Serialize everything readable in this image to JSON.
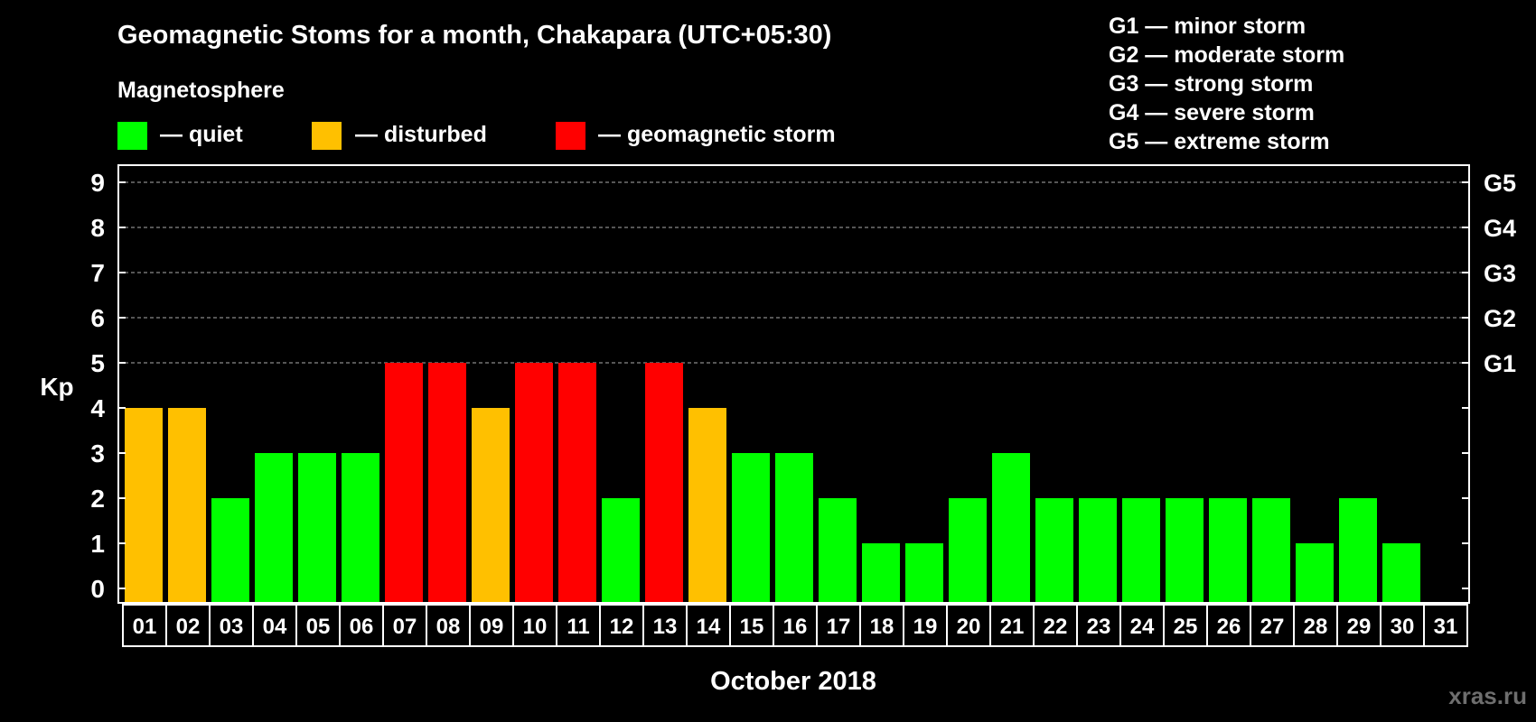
{
  "chart_data": {
    "type": "bar",
    "title": "Geomagnetic Stoms for a month, Chakapara (UTC+05:30)",
    "legend_title": "Magnetosphere",
    "legend": [
      {
        "label": "— quiet",
        "color": "#00ff00"
      },
      {
        "label": "— disturbed",
        "color": "#ffc000"
      },
      {
        "label": "— geomagnetic storm",
        "color": "#ff0000"
      }
    ],
    "storm_scale": [
      "G1 — minor storm",
      "G2 — moderate storm",
      "G3 — strong storm",
      "G4 — severe storm",
      "G5 — extreme storm"
    ],
    "ylabel": "Kp",
    "xlabel": "October 2018",
    "ylim": [
      0,
      9
    ],
    "y_ticks": [
      "0",
      "1",
      "2",
      "3",
      "4",
      "5",
      "6",
      "7",
      "8",
      "9"
    ],
    "right_ticks": [
      {
        "kp": 5,
        "label": "G1"
      },
      {
        "kp": 6,
        "label": "G2"
      },
      {
        "kp": 7,
        "label": "G3"
      },
      {
        "kp": 8,
        "label": "G4"
      },
      {
        "kp": 9,
        "label": "G5"
      }
    ],
    "grid": "dashed horizontal at Kp 5-9",
    "categories": [
      "01",
      "02",
      "03",
      "04",
      "05",
      "06",
      "07",
      "08",
      "09",
      "10",
      "11",
      "12",
      "13",
      "14",
      "15",
      "16",
      "17",
      "18",
      "19",
      "20",
      "21",
      "22",
      "23",
      "24",
      "25",
      "26",
      "27",
      "28",
      "29",
      "30",
      "31"
    ],
    "values": [
      4,
      4,
      2,
      3,
      3,
      3,
      5,
      5,
      4,
      5,
      5,
      2,
      5,
      4,
      3,
      3,
      2,
      1,
      1,
      2,
      3,
      2,
      2,
      2,
      2,
      2,
      2,
      1,
      2,
      1,
      null
    ],
    "colors": {
      "quiet": "#00ff00",
      "disturbed": "#ffc000",
      "storm": "#ff0000"
    },
    "watermark": "xras.ru"
  }
}
